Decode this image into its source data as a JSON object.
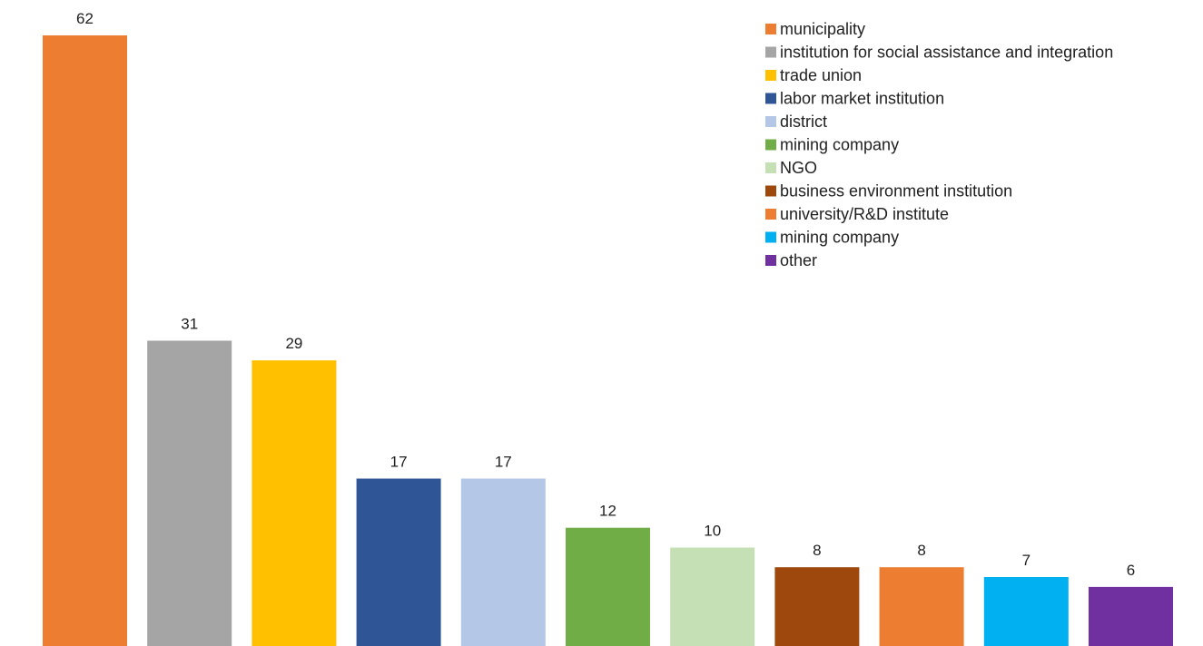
{
  "chart_data": {
    "type": "bar",
    "categories": [
      "municipality",
      "institution for social assistance and integration",
      "trade union",
      "labor market institution",
      "district",
      "mining company",
      "NGO",
      "business environment institution",
      "university/R&D institute",
      "mining company",
      "other"
    ],
    "values": [
      62,
      31,
      29,
      17,
      17,
      12,
      10,
      8,
      8,
      7,
      6
    ],
    "colors": [
      "#ED7D31",
      "#A5A5A5",
      "#FFC000",
      "#2F5597",
      "#B4C7E7",
      "#70AD47",
      "#C5E0B4",
      "#9E480E",
      "#ED7D31",
      "#00B0F0",
      "#7030A0"
    ],
    "data_labels": [
      "62",
      "31",
      "29",
      "17",
      "17",
      "12",
      "10",
      "8",
      "8",
      "7",
      "6"
    ],
    "ylim": [
      0,
      62
    ],
    "legend_position": "top-right",
    "grid": false
  }
}
